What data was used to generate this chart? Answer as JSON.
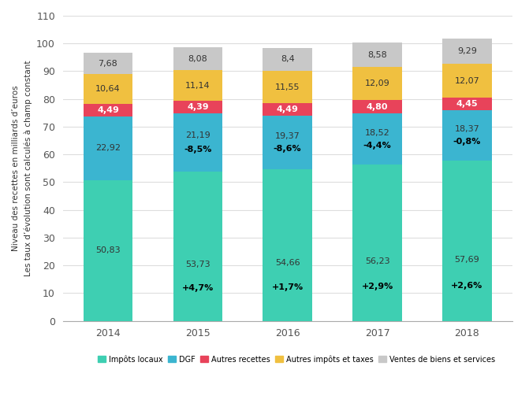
{
  "years": [
    "2014",
    "2015",
    "2016",
    "2017",
    "2018"
  ],
  "impots_locaux": [
    50.83,
    53.73,
    54.66,
    56.23,
    57.69
  ],
  "dgf": [
    22.92,
    21.19,
    19.37,
    18.52,
    18.37
  ],
  "autres_recettes": [
    4.49,
    4.39,
    4.49,
    4.8,
    4.45
  ],
  "autres_impots": [
    10.64,
    11.14,
    11.55,
    12.09,
    12.07
  ],
  "ventes": [
    7.68,
    8.08,
    8.4,
    8.58,
    9.29
  ],
  "impots_locaux_pct": [
    "",
    "+4,7%",
    "+1,7%",
    "+2,9%",
    "+2,6%"
  ],
  "dgf_pct": [
    "",
    "-8,5%",
    "-8,6%",
    "-4,4%",
    "-0,8%"
  ],
  "colors": {
    "impots_locaux": "#3ECFB2",
    "dgf": "#3BB5D0",
    "autres_recettes": "#E8435A",
    "autres_impots": "#F0C040",
    "ventes": "#C8C8C8"
  },
  "ylabel_main": "Niveau des recettes en milliards d’euros",
  "ylabel_sub": "Les taux d’évolution sont calculés à champ constant",
  "ylim": [
    0,
    110
  ],
  "yticks": [
    0,
    10,
    20,
    30,
    40,
    50,
    60,
    70,
    80,
    90,
    100,
    110
  ],
  "legend_labels": [
    "Impôts locaux",
    "DGF",
    "Autres recettes",
    "Autres impôts et taxes",
    "Ventes de biens et services"
  ]
}
